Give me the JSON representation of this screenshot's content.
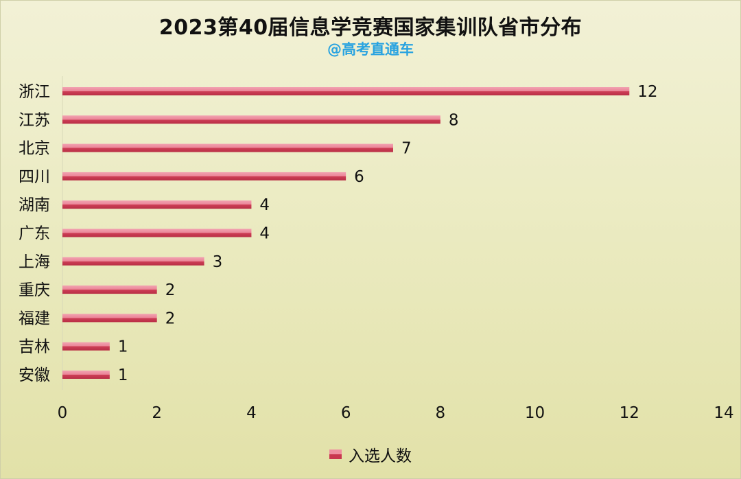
{
  "chart_data": {
    "type": "bar",
    "orientation": "horizontal",
    "title": "2023第40届信息学竞赛国家集训队省市分布",
    "subtitle": "@高考直通车",
    "categories": [
      "浙江",
      "江苏",
      "北京",
      "四川",
      "湖南",
      "广东",
      "上海",
      "重庆",
      "福建",
      "吉林",
      "安徽"
    ],
    "series": [
      {
        "name": "入选人数",
        "values": [
          12,
          8,
          7,
          6,
          4,
          4,
          3,
          2,
          2,
          1,
          1
        ],
        "color": "#d94a62"
      }
    ],
    "xlim": [
      0,
      14
    ],
    "xticks": [
      0,
      2,
      4,
      6,
      8,
      10,
      12,
      14
    ],
    "grid": false,
    "legend_position": "bottom",
    "data_labels": true
  }
}
